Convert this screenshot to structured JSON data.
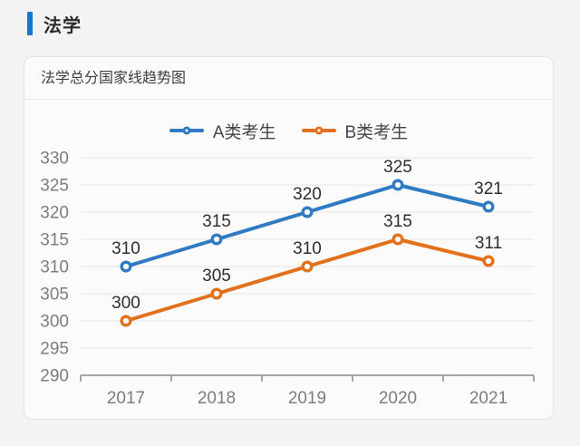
{
  "page": {
    "title": "法学",
    "accent_color": "#1477d2"
  },
  "card": {
    "header": "法学总分国家线趋势图"
  },
  "chart_data": {
    "type": "line",
    "title": "法学总分国家线趋势图",
    "categories": [
      "2017",
      "2018",
      "2019",
      "2020",
      "2021"
    ],
    "series": [
      {
        "name": "A类考生",
        "color": "#2e7bc4",
        "values": [
          310,
          315,
          320,
          325,
          321
        ]
      },
      {
        "name": "B类考生",
        "color": "#e2711d",
        "values": [
          300,
          305,
          310,
          315,
          311
        ]
      }
    ],
    "xlabel": "",
    "ylabel": "",
    "ylim": [
      290,
      330
    ],
    "ytick_step": 5,
    "grid": true,
    "legend_position": "top",
    "marker": "open-circle",
    "data_labels": true,
    "grid_color": "#e4e4e4",
    "axis_color": "#8a8a8a",
    "tick_label_color": "#7d7d7d",
    "data_label_color": "#2e2e2e"
  }
}
